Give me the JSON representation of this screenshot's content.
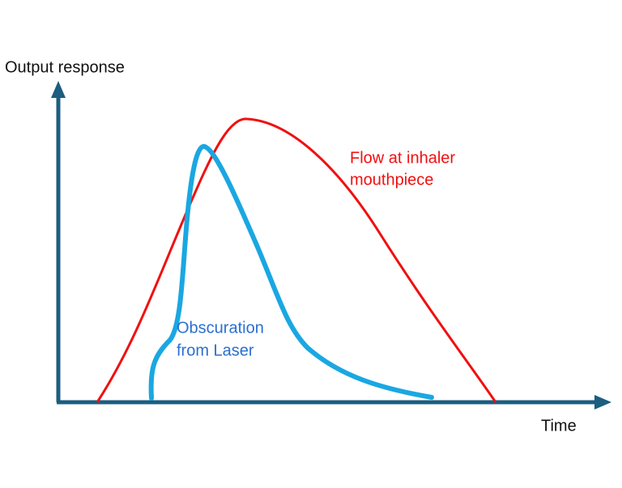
{
  "y_axis_label": "Output response",
  "x_axis_label": "Time",
  "flow_label": [
    "Flow at inhaler",
    "mouthpiece"
  ],
  "obscuration_label": [
    "Obscuration",
    "from Laser"
  ]
}
